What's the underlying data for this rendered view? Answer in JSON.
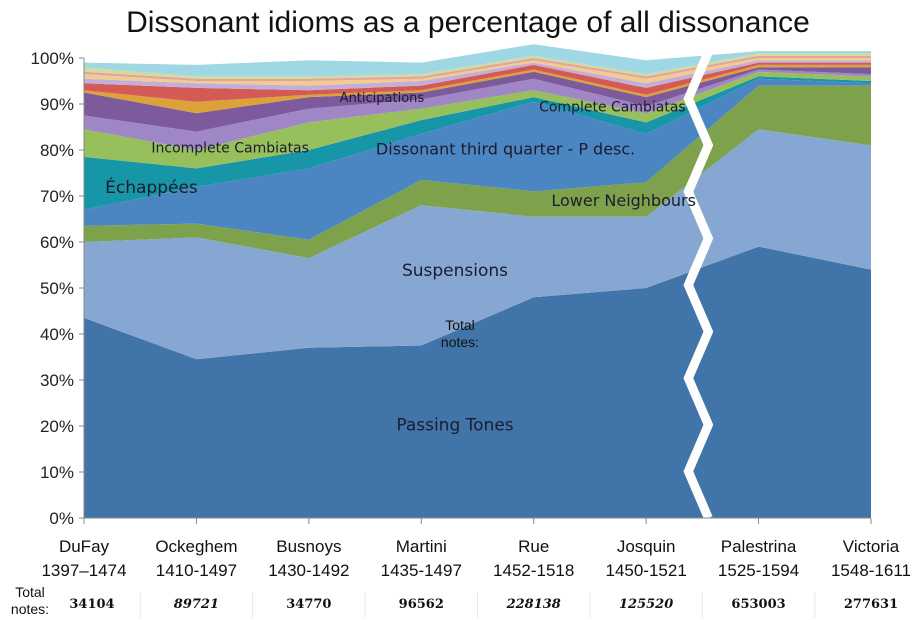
{
  "chart_data": {
    "type": "area",
    "title": "Dissonant idioms as a percentage of all dissonance",
    "yticks": [
      "0%",
      "10%",
      "20%",
      "30%",
      "40%",
      "50%",
      "60%",
      "70%",
      "80%",
      "90%",
      "100%"
    ],
    "ylim": [
      0,
      100
    ],
    "grid": false,
    "stacked": true,
    "categories": [
      {
        "composer": "DuFay",
        "dates": "1397–1474",
        "total": "34104",
        "italic": false
      },
      {
        "composer": "Ockeghem",
        "dates": "1410-1497",
        "total": "89721",
        "italic": true
      },
      {
        "composer": "Busnoys",
        "dates": "1430-1492",
        "total": "34770",
        "italic": false
      },
      {
        "composer": "Martini",
        "dates": "1435-1497",
        "total": "96562",
        "italic": false
      },
      {
        "composer": "Rue",
        "dates": "1452-1518",
        "total": "228138",
        "italic": true
      },
      {
        "composer": "Josquin",
        "dates": "1450-1521",
        "total": "125520",
        "italic": true
      },
      {
        "composer": "Palestrina",
        "dates": "1525-1594",
        "total": "653003",
        "italic": false
      },
      {
        "composer": "Victoria",
        "dates": "1548-1611",
        "total": "277631",
        "italic": false
      }
    ],
    "break_between": [
      5,
      6
    ],
    "total_notes_label": "Total\nnotes:",
    "inner_total_notes_label": "Total\nnotes:",
    "series": [
      {
        "name": "Passing Tones",
        "color": "#4174a8",
        "values": [
          43.5,
          34.5,
          37,
          37.5,
          48,
          50,
          59,
          54
        ]
      },
      {
        "name": "Suspensions",
        "color": "#87a7d3",
        "values": [
          16.5,
          26.5,
          19.5,
          30.5,
          17.5,
          15.5,
          25.5,
          27
        ]
      },
      {
        "name": "Lower Neighbours",
        "color": "#7ea24c",
        "values": [
          3.5,
          3,
          4,
          5.5,
          5.5,
          7.5,
          9.5,
          13
        ]
      },
      {
        "name": "Dissonant third quarter - P desc.",
        "color": "#4b86c3",
        "values": [
          3.5,
          8,
          15.5,
          10,
          19.5,
          10.5,
          1.5,
          0.5
        ]
      },
      {
        "name": "Échappées",
        "color": "#1796a8",
        "values": [
          11.5,
          4,
          4,
          3,
          1,
          2.5,
          0.5,
          0.5
        ]
      },
      {
        "name": "Incomplete Cambiatas",
        "color": "#97c05d",
        "values": [
          6,
          4,
          6,
          2.5,
          1.5,
          2,
          1,
          1
        ]
      },
      {
        "name": "",
        "color": "#9f86c4",
        "values": [
          3,
          4,
          3,
          2,
          2.5,
          1.5,
          0.5,
          0.5
        ]
      },
      {
        "name": "Anticipations",
        "color": "#7d5a9c",
        "values": [
          5,
          4,
          2.5,
          1.5,
          1.5,
          2,
          0.5,
          1.5
        ]
      },
      {
        "name": "Complete Cambiatas",
        "color": "#dda13a",
        "values": [
          0.5,
          2.5,
          0.5,
          0.5,
          0.5,
          0.5,
          0.5,
          0.5
        ]
      },
      {
        "name": "",
        "color": "#d35a55",
        "values": [
          1.5,
          3,
          1,
          1,
          1,
          1.5,
          0.5,
          0.5
        ]
      },
      {
        "name": "",
        "color": "#c2aed8",
        "values": [
          1,
          1,
          1,
          1,
          0.5,
          1,
          0.5,
          0.5
        ]
      },
      {
        "name": "",
        "color": "#f1cb8f",
        "values": [
          1,
          0.5,
          1,
          0.5,
          0.5,
          1,
          0.5,
          0.5
        ]
      },
      {
        "name": "",
        "color": "#e4a3a0",
        "values": [
          0.5,
          0.5,
          0.5,
          0.5,
          0.5,
          0.5,
          0.5,
          0.5
        ]
      },
      {
        "name": "",
        "color": "#cedd9c",
        "values": [
          1,
          0.5,
          0.5,
          0.5,
          0.5,
          0.5,
          0.5,
          0.5
        ]
      },
      {
        "name": "",
        "color": "#9fd7e4",
        "values": [
          1,
          2.5,
          3.5,
          2.5,
          2.5,
          3,
          0.5,
          0.5
        ]
      }
    ],
    "annotations": [
      {
        "text": "Passing Tones",
        "series": "Passing Tones"
      },
      {
        "text": "Suspensions",
        "series": "Suspensions"
      },
      {
        "text": "Lower Neighbours",
        "series": "Lower Neighbours"
      },
      {
        "text": "Dissonant third quarter - P desc.",
        "series": "Dissonant third quarter - P desc."
      },
      {
        "text": "Échappées",
        "series": "Échappées"
      },
      {
        "text": "Incomplete Cambiatas",
        "series": "Incomplete Cambiatas"
      },
      {
        "text": "Anticipations",
        "series": "Anticipations"
      },
      {
        "text": "Complete Cambiatas",
        "series": "Complete Cambiatas"
      }
    ]
  }
}
